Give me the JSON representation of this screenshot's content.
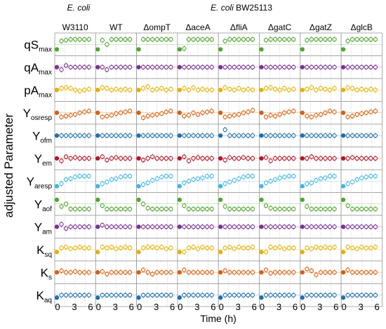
{
  "chart_data": {
    "type": "scatter",
    "layout": "small-multiples grid (rows = parameters, columns = strains)",
    "top_labels": {
      "left_group": "E. coli",
      "right_group_italic": "E. coli",
      "right_group_plain": " BW25113"
    },
    "columns": [
      "W3110",
      "WT",
      "ΔompT",
      "ΔaceA",
      "ΔfliA",
      "ΔgatC",
      "ΔgatZ",
      "ΔglcB"
    ],
    "rows": [
      {
        "base": "qS",
        "sub": "max",
        "color": "#4ea72e"
      },
      {
        "base": "qA",
        "sub": "max",
        "color": "#7b3294"
      },
      {
        "base": "pA",
        "sub": "max",
        "color": "#e6b000"
      },
      {
        "base": "Y",
        "sub": "osresp",
        "color": "#d95f0e"
      },
      {
        "base": "Y",
        "sub": "ofm",
        "color": "#1f6fb2"
      },
      {
        "base": "Y",
        "sub": "em",
        "color": "#b2182b"
      },
      {
        "base": "Y",
        "sub": "aresp",
        "color": "#41b6e6"
      },
      {
        "base": "Y",
        "sub": "aof",
        "color": "#4ea72e"
      },
      {
        "base": "Y",
        "sub": "am",
        "color": "#7b3294"
      },
      {
        "base": "K",
        "sub": "sq",
        "color": "#e6b000"
      },
      {
        "base": "K",
        "sub": "s",
        "color": "#d95f0e"
      },
      {
        "base": "K",
        "sub": "aq",
        "color": "#1f6fb2"
      }
    ],
    "ylabel": "adjusted Parameter",
    "xlabel": "Time (h)",
    "xticks": [
      "0",
      "3",
      "6"
    ],
    "xlim": [
      0,
      8
    ],
    "ylim": [
      -1.2,
      1.2
    ],
    "x_times": [
      0,
      1,
      2,
      3,
      4,
      5,
      6,
      7
    ],
    "values": [
      [
        [
          -0.6,
          0.4,
          0.5,
          0.6,
          0.6,
          0.6,
          0.6,
          0.6
        ],
        [
          -0.6,
          0.5,
          0.0,
          0.6,
          0.6,
          0.6,
          0.6,
          0.6
        ],
        [
          -0.6,
          0.6,
          0.6,
          0.6,
          0.6,
          0.6,
          0.6,
          0.6
        ],
        [
          -0.6,
          -0.5,
          0.6,
          0.6,
          0.6,
          0.6,
          0.6,
          0.6
        ],
        [
          -0.6,
          0.4,
          0.6,
          0.6,
          0.6,
          0.6,
          0.6,
          0.6
        ],
        [
          -0.6,
          0.5,
          0.6,
          0.6,
          0.6,
          0.6,
          0.6,
          0.6
        ],
        [
          -0.6,
          0.5,
          0.6,
          0.6,
          0.6,
          0.6,
          0.6,
          0.6
        ],
        [
          -0.6,
          0.4,
          0.6,
          0.6,
          0.6,
          0.6,
          0.6,
          0.6
        ]
      ],
      [
        [
          0.0,
          -0.3,
          0.2,
          0.0,
          0.0,
          0.0,
          0.0,
          0.0
        ],
        [
          0.0,
          0.0,
          -0.3,
          0.0,
          0.0,
          0.0,
          0.0,
          0.0
        ],
        [
          0.0,
          0.0,
          0.0,
          0.0,
          0.0,
          0.0,
          0.0,
          0.0
        ],
        [
          0.0,
          0.0,
          0.0,
          0.0,
          0.0,
          0.0,
          0.0,
          0.0
        ],
        [
          0.0,
          0.0,
          0.0,
          0.0,
          0.0,
          0.0,
          0.0,
          0.0
        ],
        [
          0.0,
          0.0,
          0.0,
          0.0,
          0.0,
          0.0,
          0.0,
          0.0
        ],
        [
          0.0,
          0.0,
          0.0,
          0.0,
          0.0,
          0.0,
          0.0,
          0.0
        ],
        [
          0.0,
          0.0,
          0.0,
          0.0,
          0.0,
          0.0,
          0.0,
          0.0
        ]
      ],
      [
        [
          0.0,
          0.2,
          0.3,
          0.2,
          0.0,
          -0.1,
          0.0,
          0.1
        ],
        [
          0.0,
          0.3,
          0.2,
          0.0,
          0.1,
          0.0,
          0.1,
          0.0
        ],
        [
          0.0,
          0.2,
          0.4,
          0.0,
          0.1,
          0.2,
          0.0,
          0.1
        ],
        [
          0.0,
          0.2,
          0.0,
          0.3,
          0.0,
          0.1,
          0.0,
          0.0
        ],
        [
          0.0,
          0.3,
          0.1,
          0.0,
          0.2,
          0.0,
          0.1,
          0.0
        ],
        [
          0.0,
          0.2,
          0.3,
          0.1,
          0.0,
          0.2,
          0.0,
          0.1
        ],
        [
          0.0,
          0.1,
          0.3,
          0.0,
          0.2,
          0.1,
          0.0,
          0.2
        ],
        [
          0.0,
          0.3,
          0.2,
          0.0,
          0.1,
          0.0,
          0.1,
          0.0
        ]
      ],
      [
        [
          0.0,
          -0.5,
          -0.4,
          -0.3,
          -0.2,
          0.0,
          0.1,
          0.2
        ],
        [
          0.0,
          -0.5,
          -0.4,
          -0.3,
          -0.1,
          0.0,
          0.1,
          0.2
        ],
        [
          0.0,
          -0.6,
          -0.4,
          -0.3,
          -0.2,
          -0.1,
          0.1,
          0.2
        ],
        [
          0.0,
          -0.4,
          -0.3,
          0.0,
          -0.2,
          0.0,
          0.1,
          0.2
        ],
        [
          0.0,
          -0.5,
          -0.4,
          -0.3,
          -0.2,
          0.0,
          0.1,
          0.3
        ],
        [
          0.0,
          -0.5,
          -0.3,
          -0.4,
          -0.2,
          0.0,
          0.1,
          0.2
        ],
        [
          0.0,
          -0.4,
          -0.5,
          -0.3,
          -0.2,
          0.0,
          0.2,
          0.1
        ],
        [
          0.0,
          -0.5,
          -0.4,
          -0.2,
          -0.1,
          0.0,
          0.1,
          0.2
        ]
      ],
      [
        [
          0.0,
          0.0,
          0.0,
          0.0,
          0.0,
          0.0,
          0.0,
          0.0
        ],
        [
          0.0,
          0.0,
          0.0,
          0.0,
          0.0,
          0.0,
          0.0,
          0.0
        ],
        [
          0.0,
          0.0,
          0.0,
          0.0,
          0.0,
          0.0,
          0.0,
          0.0
        ],
        [
          0.0,
          0.0,
          0.0,
          0.0,
          0.0,
          0.0,
          0.0,
          0.0
        ],
        [
          0.0,
          0.7,
          0.0,
          0.0,
          0.0,
          0.0,
          0.0,
          0.0
        ],
        [
          0.0,
          0.0,
          0.0,
          0.0,
          0.0,
          0.0,
          0.0,
          0.0
        ],
        [
          0.0,
          0.0,
          0.0,
          0.0,
          0.0,
          0.0,
          0.0,
          0.0
        ],
        [
          0.0,
          0.0,
          0.0,
          0.0,
          0.0,
          0.0,
          0.0,
          0.0
        ]
      ],
      [
        [
          0.0,
          -0.3,
          0.2,
          0.0,
          0.1,
          0.0,
          0.0,
          0.0
        ],
        [
          0.0,
          0.2,
          -0.2,
          0.0,
          0.1,
          0.0,
          0.0,
          0.0
        ],
        [
          0.0,
          -0.2,
          0.0,
          0.2,
          0.0,
          0.0,
          0.0,
          0.0
        ],
        [
          0.0,
          0.2,
          -0.3,
          0.0,
          0.1,
          0.0,
          0.0,
          0.0
        ],
        [
          0.0,
          -0.2,
          0.1,
          0.0,
          0.0,
          0.1,
          0.0,
          0.0
        ],
        [
          0.0,
          0.1,
          -0.3,
          0.0,
          0.0,
          0.0,
          0.0,
          0.0
        ],
        [
          0.0,
          0.0,
          0.2,
          0.0,
          0.0,
          0.0,
          0.0,
          0.0
        ],
        [
          0.0,
          0.0,
          0.1,
          0.0,
          0.0,
          0.0,
          0.0,
          0.0
        ]
      ],
      [
        [
          -0.6,
          -0.3,
          0.2,
          0.3,
          0.5,
          0.6,
          0.6,
          0.6
        ],
        [
          -0.6,
          -0.3,
          -0.1,
          0.2,
          0.3,
          0.5,
          0.6,
          0.6
        ],
        [
          -0.6,
          -0.4,
          -0.2,
          0.1,
          0.3,
          0.5,
          0.6,
          0.6
        ],
        [
          -0.6,
          -0.2,
          0.0,
          0.2,
          0.3,
          0.4,
          0.6,
          0.6
        ],
        [
          -0.6,
          -0.3,
          -0.1,
          0.1,
          0.3,
          0.5,
          0.6,
          0.6
        ],
        [
          -0.6,
          -0.2,
          0.0,
          0.2,
          0.4,
          0.5,
          0.6,
          0.6
        ],
        [
          -0.6,
          -0.3,
          -0.2,
          0.1,
          0.3,
          0.4,
          0.6,
          0.6
        ],
        [
          -0.6,
          -0.3,
          -0.1,
          0.2,
          0.4,
          0.5,
          0.6,
          0.6
        ]
      ],
      [
        [
          0.5,
          -0.3,
          0.0,
          -0.6,
          -0.6,
          -0.6,
          -0.6,
          -0.6
        ],
        [
          0.5,
          -0.2,
          -0.6,
          -0.6,
          -0.6,
          -0.6,
          -0.6,
          -0.6
        ],
        [
          0.5,
          0.0,
          -0.5,
          -0.6,
          -0.6,
          -0.6,
          -0.6,
          -0.6
        ],
        [
          0.5,
          -0.2,
          -0.6,
          -0.6,
          -0.6,
          -0.6,
          -0.6,
          -0.6
        ],
        [
          0.5,
          -0.3,
          -0.6,
          -0.6,
          -0.6,
          -0.6,
          -0.6,
          -0.6
        ],
        [
          0.5,
          -0.2,
          -0.5,
          -0.6,
          -0.6,
          -0.6,
          -0.6,
          -0.6
        ],
        [
          0.5,
          -0.3,
          -0.6,
          -0.6,
          -0.6,
          -0.6,
          -0.6,
          -0.6
        ],
        [
          0.5,
          -0.2,
          -0.6,
          -0.6,
          -0.6,
          -0.6,
          -0.6,
          -0.6
        ]
      ],
      [
        [
          0.0,
          0.3,
          -0.2,
          0.0,
          0.0,
          0.0,
          0.0,
          0.0
        ],
        [
          0.0,
          0.2,
          0.0,
          0.0,
          0.0,
          0.0,
          0.0,
          0.0
        ],
        [
          0.0,
          0.0,
          0.0,
          0.0,
          0.0,
          0.0,
          0.0,
          0.0
        ],
        [
          0.0,
          0.0,
          0.0,
          0.0,
          0.0,
          0.0,
          0.0,
          0.0
        ],
        [
          0.0,
          0.0,
          0.0,
          0.0,
          0.0,
          0.0,
          0.0,
          0.0
        ],
        [
          0.0,
          0.0,
          0.0,
          0.0,
          0.0,
          0.0,
          0.0,
          0.0
        ],
        [
          0.0,
          0.0,
          0.0,
          0.0,
          0.0,
          0.0,
          0.0,
          0.0
        ],
        [
          0.0,
          0.0,
          0.0,
          0.0,
          0.0,
          0.0,
          0.0,
          0.0
        ]
      ],
      [
        [
          -0.3,
          0.2,
          0.3,
          0.1,
          0.2,
          0.3,
          0.2,
          0.2
        ],
        [
          -0.3,
          0.3,
          0.2,
          0.3,
          0.1,
          0.2,
          0.3,
          0.2
        ],
        [
          -0.3,
          0.2,
          0.3,
          0.3,
          0.2,
          0.3,
          0.1,
          0.2
        ],
        [
          -0.3,
          -0.3,
          0.2,
          0.3,
          0.1,
          0.3,
          0.2,
          0.2
        ],
        [
          -0.3,
          0.2,
          0.3,
          0.1,
          0.3,
          0.2,
          0.2,
          0.3
        ],
        [
          -0.3,
          -0.3,
          0.3,
          0.2,
          0.3,
          0.1,
          0.2,
          0.2
        ],
        [
          -0.3,
          0.2,
          0.1,
          0.3,
          0.2,
          0.3,
          0.2,
          0.3
        ],
        [
          -0.3,
          0.3,
          0.2,
          0.1,
          0.3,
          0.2,
          0.2,
          0.3
        ]
      ],
      [
        [
          0.0,
          0.2,
          0.0,
          0.0,
          0.1,
          0.0,
          0.0,
          0.0
        ],
        [
          0.0,
          0.1,
          -0.2,
          0.0,
          0.0,
          0.0,
          0.0,
          0.0
        ],
        [
          0.0,
          0.3,
          0.0,
          -0.2,
          0.0,
          0.0,
          0.0,
          0.0
        ],
        [
          0.0,
          0.3,
          0.0,
          0.0,
          0.0,
          0.0,
          0.0,
          0.0
        ],
        [
          0.0,
          0.2,
          0.0,
          0.0,
          0.0,
          0.0,
          0.0,
          0.0
        ],
        [
          0.0,
          0.3,
          -0.1,
          0.0,
          0.0,
          0.0,
          0.0,
          0.0
        ],
        [
          0.0,
          0.4,
          0.2,
          -0.3,
          0.0,
          0.0,
          0.0,
          0.0
        ],
        [
          0.0,
          0.3,
          0.0,
          0.0,
          0.0,
          0.0,
          0.0,
          0.0
        ]
      ],
      [
        [
          -0.3,
          0.0,
          0.0,
          0.0,
          0.0,
          0.0,
          0.0,
          0.0
        ],
        [
          -0.3,
          0.0,
          0.0,
          0.0,
          0.0,
          0.0,
          0.0,
          0.0
        ],
        [
          -0.3,
          0.0,
          0.0,
          0.0,
          0.0,
          0.0,
          0.0,
          0.0
        ],
        [
          -0.3,
          0.0,
          0.0,
          0.0,
          0.0,
          0.0,
          0.0,
          0.0
        ],
        [
          -0.3,
          0.0,
          0.0,
          0.0,
          0.0,
          0.0,
          0.0,
          0.0
        ],
        [
          -0.3,
          0.0,
          0.0,
          0.0,
          0.0,
          0.0,
          0.0,
          0.0
        ],
        [
          -0.3,
          0.0,
          0.0,
          0.0,
          0.0,
          0.0,
          0.0,
          0.0
        ],
        [
          -0.3,
          0.0,
          0.0,
          0.0,
          0.0,
          0.0,
          0.0,
          0.0
        ]
      ]
    ]
  }
}
